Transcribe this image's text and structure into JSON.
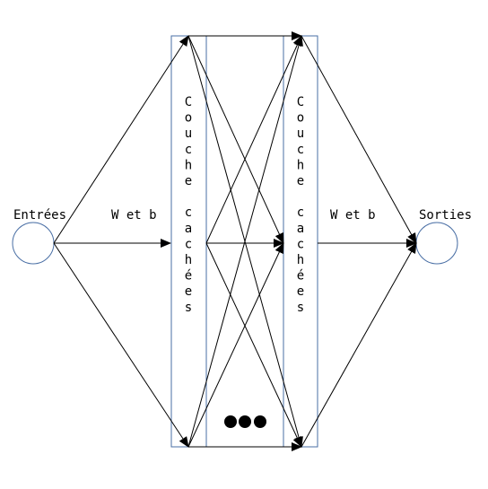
{
  "diagram": {
    "input_label": "Entrées",
    "output_label": "Sorties",
    "weight_label_left": "W et b",
    "weight_label_right": "W et b",
    "hidden_layer_1": {
      "line1": "Couche",
      "line2": "cachées"
    },
    "hidden_layer_2": {
      "line1": "Couche",
      "line2": "cachées"
    }
  },
  "colors": {
    "node_stroke": "#4a6fa5",
    "layer_stroke": "#4a6fa5",
    "arrow": "#000000",
    "ellipsis_dots": "#000000"
  }
}
